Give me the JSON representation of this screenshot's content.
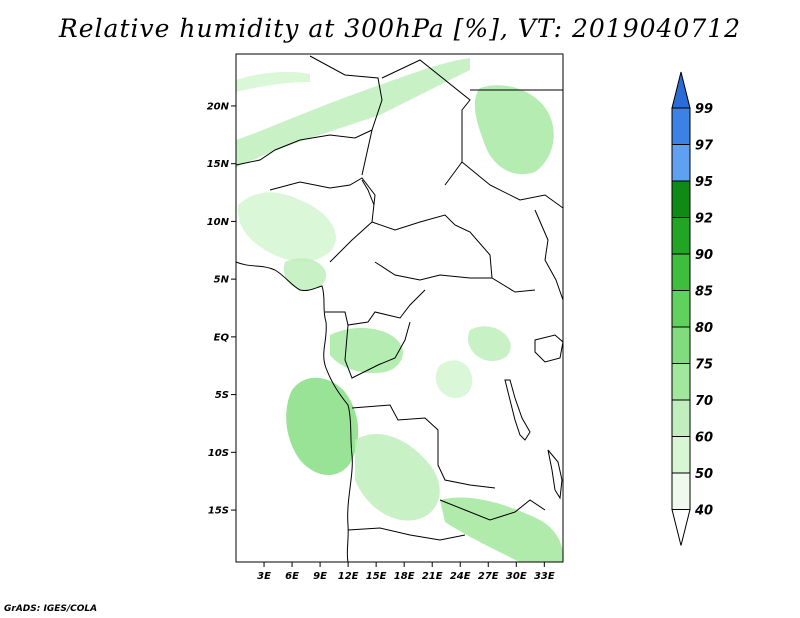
{
  "title": "Relative humidity at 300hPa [%], VT: 2019040712",
  "credit": "GrADS: IGES/COLA",
  "map": {
    "lat_labels": [
      "20N",
      "15N",
      "10N",
      "5N",
      "EQ",
      "5S",
      "10S",
      "15S"
    ],
    "lon_labels": [
      "3E",
      "6E",
      "9E",
      "12E",
      "15E",
      "18E",
      "21E",
      "24E",
      "27E",
      "30E",
      "33E"
    ],
    "lat_range": [
      -19.5,
      24.5
    ],
    "lon_range": [
      0,
      35
    ],
    "humidity_areas": [
      {
        "name": "sahel-band",
        "level": 60
      },
      {
        "name": "northeast-cloud",
        "level": 70
      },
      {
        "name": "nigeria-west",
        "level": 50
      },
      {
        "name": "cameroon-coast",
        "level": 60
      },
      {
        "name": "gabon-congo",
        "level": 70
      },
      {
        "name": "angola-offshore",
        "level": 75
      },
      {
        "name": "angola-interior",
        "level": 60
      },
      {
        "name": "zambia-band",
        "level": 70
      },
      {
        "name": "great-lakes",
        "level": 60
      }
    ]
  },
  "colorbar": {
    "levels": [
      "99",
      "97",
      "95",
      "92",
      "90",
      "85",
      "80",
      "75",
      "70",
      "60",
      "50",
      "40"
    ],
    "colors": [
      "#2a6bd6",
      "#3c82e6",
      "#5fa0f0",
      "#0f8a14",
      "#22a524",
      "#3fbd3c",
      "#5fd15c",
      "#80dc7c",
      "#a2e79e",
      "#bfefbc",
      "#d6f6d4",
      "#eefbec"
    ]
  }
}
